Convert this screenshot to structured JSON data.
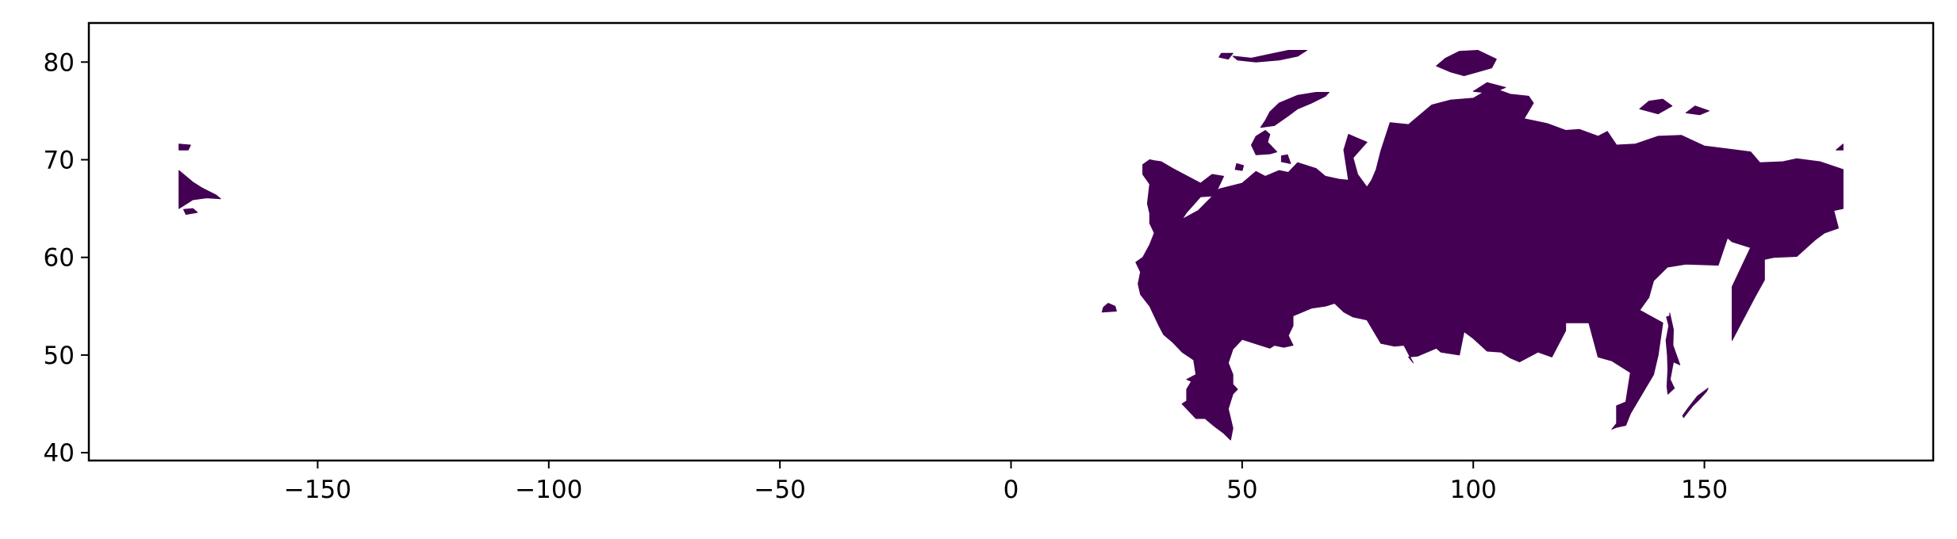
{
  "chart_data": {
    "type": "choropleth-map",
    "title": "",
    "xlabel": "",
    "ylabel": "",
    "xlim": [
      -199.5,
      199.5
    ],
    "ylim": [
      39.2,
      84.0
    ],
    "xticks": [
      -150,
      -100,
      -50,
      0,
      50,
      100,
      150
    ],
    "xtick_labels": [
      "−150",
      "−100",
      "−50",
      "0",
      "50",
      "100",
      "150"
    ],
    "yticks": [
      40,
      50,
      60,
      70,
      80
    ],
    "ytick_labels": [
      "40",
      "50",
      "60",
      "70",
      "80"
    ],
    "grid": false,
    "legend": "none",
    "fill_color": "#440154",
    "features": [
      {
        "name": "mainland",
        "lonlat": [
          [
            32.5,
            69.8
          ],
          [
            35,
            69.1
          ],
          [
            41,
            67.6
          ],
          [
            43.5,
            68.5
          ],
          [
            46,
            68.3
          ],
          [
            44,
            66.3
          ],
          [
            41,
            66.2
          ],
          [
            38,
            64.6
          ],
          [
            37,
            63.9
          ],
          [
            40.5,
            64.8
          ],
          [
            43,
            66.0
          ],
          [
            45,
            67.0
          ],
          [
            50,
            67.6
          ],
          [
            53,
            68.8
          ],
          [
            55,
            68.3
          ],
          [
            58,
            68.9
          ],
          [
            60,
            68.7
          ],
          [
            62,
            69.7
          ],
          [
            64,
            69.4
          ],
          [
            66,
            69.1
          ],
          [
            68,
            68.3
          ],
          [
            71,
            68.0
          ],
          [
            73,
            67.9
          ],
          [
            72,
            71.0
          ],
          [
            73,
            72.6
          ],
          [
            75,
            72.2
          ],
          [
            77,
            71.8
          ],
          [
            74,
            70.2
          ],
          [
            75,
            68.5
          ],
          [
            77,
            67.2
          ],
          [
            78,
            67.9
          ],
          [
            79,
            69.0
          ],
          [
            80,
            70.9
          ],
          [
            82,
            73.8
          ],
          [
            86,
            73.6
          ],
          [
            91,
            75.6
          ],
          [
            95,
            76.1
          ],
          [
            100,
            76.3
          ],
          [
            104,
            77.4
          ],
          [
            108,
            76.7
          ],
          [
            112,
            76.5
          ],
          [
            113,
            75.8
          ],
          [
            111,
            74.2
          ],
          [
            116,
            73.7
          ],
          [
            120,
            73.0
          ],
          [
            123,
            73.1
          ],
          [
            127,
            72.4
          ],
          [
            129,
            72.9
          ],
          [
            131,
            71.5
          ],
          [
            135,
            71.6
          ],
          [
            140,
            72.4
          ],
          [
            145,
            72.5
          ],
          [
            150,
            71.4
          ],
          [
            155,
            71.1
          ],
          [
            160,
            70.8
          ],
          [
            162,
            69.7
          ],
          [
            167,
            69.8
          ],
          [
            170,
            70.1
          ],
          [
            175,
            69.8
          ],
          [
            180,
            69.0
          ],
          [
            180,
            65.0
          ],
          [
            178,
            64.8
          ],
          [
            179,
            63.0
          ],
          [
            176,
            62.5
          ],
          [
            174,
            61.8
          ],
          [
            170,
            60.1
          ],
          [
            165,
            60.0
          ],
          [
            163,
            59.8
          ],
          [
            163,
            57.7
          ],
          [
            161,
            56.0
          ],
          [
            156,
            51.5
          ],
          [
            156,
            53.5
          ],
          [
            156,
            57.0
          ],
          [
            160,
            61.0
          ],
          [
            156,
            61.6
          ],
          [
            155,
            62.0
          ],
          [
            153,
            59.2
          ],
          [
            146,
            59.3
          ],
          [
            142,
            59.0
          ],
          [
            139,
            57.6
          ],
          [
            138,
            55.9
          ],
          [
            136,
            54.6
          ],
          [
            141,
            53.3
          ],
          [
            140,
            50.0
          ],
          [
            139,
            48.0
          ],
          [
            134,
            44.0
          ],
          [
            133,
            42.8
          ],
          [
            131,
            42.6
          ],
          [
            130,
            42.4
          ],
          [
            131,
            43.0
          ],
          [
            131,
            44.8
          ],
          [
            133,
            45.2
          ],
          [
            134,
            48.2
          ],
          [
            130,
            49.4
          ],
          [
            127,
            49.8
          ],
          [
            125,
            53.3
          ],
          [
            120,
            53.3
          ],
          [
            120,
            52.5
          ],
          [
            117,
            49.8
          ],
          [
            114,
            50.3
          ],
          [
            110,
            49.3
          ],
          [
            108,
            49.7
          ],
          [
            106,
            50.3
          ],
          [
            103,
            50.4
          ],
          [
            100,
            51.7
          ],
          [
            98,
            52.4
          ],
          [
            97,
            50.0
          ],
          [
            93,
            50.3
          ],
          [
            92,
            50.7
          ],
          [
            88,
            49.9
          ],
          [
            86,
            49.8
          ],
          [
            87,
            49.2
          ],
          [
            85,
            51.0
          ],
          [
            83,
            50.9
          ],
          [
            80,
            51.2
          ],
          [
            77,
            53.6
          ],
          [
            74,
            53.9
          ],
          [
            72,
            54.4
          ],
          [
            70,
            55.3
          ],
          [
            68,
            55.0
          ],
          [
            65,
            54.8
          ],
          [
            61,
            54.0
          ],
          [
            61,
            53.0
          ],
          [
            60,
            52.0
          ],
          [
            61,
            51.0
          ],
          [
            59,
            50.8
          ],
          [
            57,
            51.0
          ],
          [
            56,
            50.7
          ],
          [
            54,
            51.0
          ],
          [
            50,
            51.6
          ],
          [
            48,
            50.6
          ],
          [
            47,
            49.2
          ],
          [
            48,
            48.0
          ],
          [
            48,
            47.0
          ],
          [
            49,
            46.5
          ],
          [
            48,
            46.0
          ],
          [
            47,
            44.5
          ],
          [
            47.5,
            43.5
          ],
          [
            48,
            42.5
          ],
          [
            47.5,
            41.3
          ],
          [
            46,
            42.0
          ],
          [
            44,
            42.7
          ],
          [
            42,
            43.5
          ],
          [
            40,
            43.5
          ],
          [
            38,
            44.5
          ],
          [
            37,
            45.0
          ],
          [
            38,
            45.3
          ],
          [
            38,
            46.5
          ],
          [
            39,
            47.3
          ],
          [
            38,
            47.5
          ],
          [
            40,
            48.0
          ],
          [
            39.5,
            49.5
          ],
          [
            37,
            50.3
          ],
          [
            35,
            51.3
          ],
          [
            33,
            52.1
          ],
          [
            32,
            53.0
          ],
          [
            31,
            54.0
          ],
          [
            30,
            55.0
          ],
          [
            28,
            56.2
          ],
          [
            27.5,
            57.3
          ],
          [
            28,
            58.5
          ],
          [
            27,
            59.5
          ],
          [
            28.5,
            60.0
          ],
          [
            30,
            61.3
          ],
          [
            31,
            62.5
          ],
          [
            30,
            63.5
          ],
          [
            30,
            64.5
          ],
          [
            29.5,
            65.5
          ],
          [
            30,
            67.5
          ],
          [
            28.5,
            68.5
          ],
          [
            28.5,
            69.5
          ],
          [
            30,
            70.0
          ],
          [
            31,
            69.9
          ]
        ]
      },
      {
        "name": "kaliningrad",
        "lonlat": [
          [
            19.7,
            54.4
          ],
          [
            22.8,
            54.5
          ],
          [
            22.5,
            55.0
          ],
          [
            21,
            55.3
          ],
          [
            20,
            54.9
          ]
        ]
      },
      {
        "name": "sakhalin",
        "lonlat": [
          [
            142.5,
            54.3
          ],
          [
            143.3,
            52.6
          ],
          [
            143.2,
            51.0
          ],
          [
            144.7,
            49.0
          ],
          [
            143.3,
            49.3
          ],
          [
            142.6,
            47.5
          ],
          [
            143.5,
            46.6
          ],
          [
            142.1,
            46.0
          ],
          [
            141.9,
            46.8
          ],
          [
            142.1,
            48.5
          ],
          [
            142.0,
            50.0
          ],
          [
            141.7,
            51.5
          ],
          [
            142.3,
            53.0
          ],
          [
            141.8,
            53.9
          ],
          [
            142.5,
            54.0
          ]
        ]
      },
      {
        "name": "novaya-zemlya-south",
        "lonlat": [
          [
            53,
            70.5
          ],
          [
            56,
            70.6
          ],
          [
            57.5,
            70.8
          ],
          [
            55.5,
            71.8
          ],
          [
            56,
            72.6
          ],
          [
            55,
            73.0
          ],
          [
            53,
            72.4
          ],
          [
            52,
            71.5
          ],
          [
            52.5,
            71.0
          ]
        ]
      },
      {
        "name": "novaya-zemlya-north",
        "lonlat": [
          [
            54,
            73.3
          ],
          [
            57,
            73.5
          ],
          [
            60,
            74.5
          ],
          [
            62,
            75.2
          ],
          [
            65,
            75.8
          ],
          [
            68,
            76.5
          ],
          [
            68.8,
            76.9
          ],
          [
            66,
            76.9
          ],
          [
            62,
            76.6
          ],
          [
            58,
            75.8
          ],
          [
            56,
            74.9
          ],
          [
            55,
            74.0
          ]
        ]
      },
      {
        "name": "vaygach",
        "lonlat": [
          [
            58.5,
            69.8
          ],
          [
            60.5,
            69.6
          ],
          [
            59.8,
            70.5
          ],
          [
            58.5,
            70.4
          ]
        ]
      },
      {
        "name": "severnaya-zemlya",
        "lonlat": [
          [
            95,
            79.0
          ],
          [
            98,
            78.6
          ],
          [
            101,
            79.0
          ],
          [
            104,
            79.4
          ],
          [
            105,
            80.3
          ],
          [
            101,
            81.2
          ],
          [
            97,
            81.1
          ],
          [
            94,
            80.4
          ],
          [
            92,
            79.6
          ]
        ]
      },
      {
        "name": "franz-josef",
        "lonlat": [
          [
            48,
            80.6
          ],
          [
            52,
            80.4
          ],
          [
            56,
            80.8
          ],
          [
            60,
            81.2
          ],
          [
            64,
            81.2
          ],
          [
            62,
            80.6
          ],
          [
            58,
            80.2
          ],
          [
            53,
            80.0
          ],
          [
            49,
            80.2
          ]
        ]
      },
      {
        "name": "franz-josef-west",
        "lonlat": [
          [
            45,
            80.5
          ],
          [
            47,
            80.3
          ],
          [
            48,
            80.9
          ],
          [
            45.5,
            80.9
          ]
        ]
      },
      {
        "name": "taymyr-islands",
        "lonlat": [
          [
            100,
            77.0
          ],
          [
            104,
            76.8
          ],
          [
            107,
            77.4
          ],
          [
            103,
            77.9
          ]
        ]
      },
      {
        "name": "new-siberian-1",
        "lonlat": [
          [
            136,
            75.2
          ],
          [
            140,
            74.7
          ],
          [
            143,
            75.5
          ],
          [
            141,
            76.2
          ],
          [
            138,
            76.0
          ]
        ]
      },
      {
        "name": "new-siberian-2",
        "lonlat": [
          [
            146,
            74.8
          ],
          [
            149,
            74.6
          ],
          [
            151,
            75.0
          ],
          [
            148,
            75.5
          ]
        ]
      },
      {
        "name": "wrangel",
        "lonlat": [
          [
            178.5,
            71.0
          ],
          [
            180,
            71.6
          ],
          [
            180,
            71.0
          ]
        ]
      },
      {
        "name": "kolguev",
        "lonlat": [
          [
            48.5,
            69.0
          ],
          [
            50,
            68.9
          ],
          [
            50.3,
            69.4
          ],
          [
            48.8,
            69.6
          ]
        ]
      },
      {
        "name": "kurils",
        "lonlat": [
          [
            145.5,
            43.6
          ],
          [
            147.5,
            44.8
          ],
          [
            149,
            45.5
          ],
          [
            150.5,
            46.3
          ],
          [
            150.8,
            46.6
          ],
          [
            148.5,
            45.8
          ],
          [
            146.5,
            44.6
          ],
          [
            145.3,
            43.8
          ]
        ]
      },
      {
        "name": "east-tip",
        "lonlat": [
          [
            -180,
            65.0
          ],
          [
            -177,
            65.9
          ],
          [
            -174,
            66.1
          ],
          [
            -171,
            66.0
          ],
          [
            -172,
            66.4
          ],
          [
            -175,
            67.1
          ],
          [
            -177,
            67.7
          ],
          [
            -180,
            68.9
          ]
        ]
      },
      {
        "name": "east-tip-small",
        "lonlat": [
          [
            -178.5,
            64.4
          ],
          [
            -176,
            64.6
          ],
          [
            -177,
            65.0
          ],
          [
            -179,
            64.9
          ]
        ]
      },
      {
        "name": "wrangel-east",
        "lonlat": [
          [
            -180,
            71.0
          ],
          [
            -178,
            71.0
          ],
          [
            -177.5,
            71.5
          ],
          [
            -180,
            71.6
          ]
        ]
      }
    ]
  }
}
